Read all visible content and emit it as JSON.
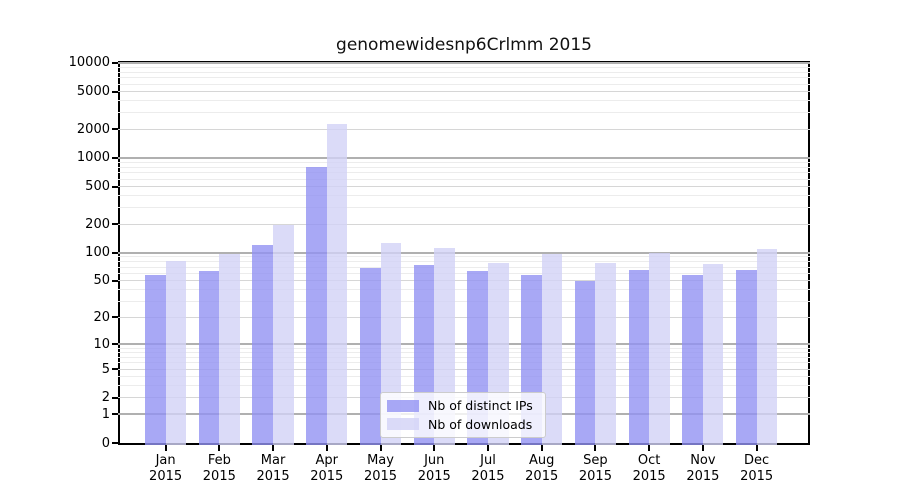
{
  "title": "genomewidesnp6Crlmm 2015",
  "chart_data": {
    "type": "bar",
    "title": "genomewidesnp6Crlmm 2015",
    "categories": [
      "Jan",
      "Feb",
      "Mar",
      "Apr",
      "May",
      "Jun",
      "Jul",
      "Aug",
      "Sep",
      "Oct",
      "Nov",
      "Dec"
    ],
    "category_year": "2015",
    "series": [
      {
        "name": "Nb of distinct IPs",
        "color": "#9292F3",
        "values": [
          57,
          64,
          120,
          800,
          69,
          73,
          64,
          58,
          50,
          66,
          58,
          66
        ]
      },
      {
        "name": "Nb of downloads",
        "color": "#D2D2F6",
        "values": [
          82,
          97,
          195,
          2300,
          125,
          112,
          78,
          97,
          78,
          100,
          76,
          110
        ]
      }
    ],
    "bar_opacity": 0.8,
    "y_scale": "log10(1+x)",
    "ylim": [
      0,
      10000
    ],
    "yticks": [
      0,
      1,
      2,
      5,
      10,
      20,
      50,
      100,
      200,
      500,
      1000,
      2000,
      5000,
      10000
    ],
    "grid": true,
    "legend_position": "inside-bottom-center",
    "colors": {
      "grid_major": "#b0b0b0",
      "grid_sub": "#d6d6d6",
      "grid_minor": "#ececec",
      "axis": "#000000",
      "title_text": "#111111",
      "tick_text": "#000000"
    }
  }
}
